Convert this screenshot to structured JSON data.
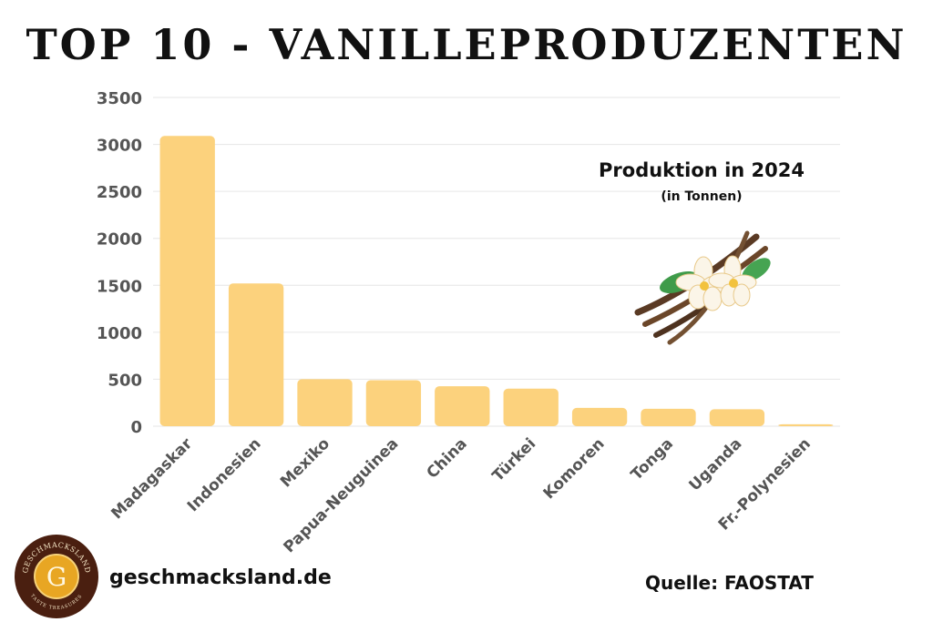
{
  "title": "TOP 10 - VANILLEPRODUZENTEN",
  "subtitle": "Produktion in 2024",
  "unit_note": "(in Tonnen)",
  "website": "geschmacksland.de",
  "source": "Quelle: FAOSTAT",
  "logo": {
    "text_top": "GESCHMACKSLAND",
    "text_bottom": "TASTE TREASURES",
    "letter": "G"
  },
  "colors": {
    "bar": "#fcd27d",
    "grid": "#e6e6e6",
    "tick_text": "#555555",
    "logo_ring": "#4a1f10",
    "logo_center": "#e8a623"
  },
  "illustration": "vanilla-pods-with-flowers",
  "chart_data": {
    "type": "bar",
    "categories": [
      "Madagaskar",
      "Indonesien",
      "Mexiko",
      "Papua-Neuguinea",
      "China",
      "Türkei",
      "Komoren",
      "Tonga",
      "Uganda",
      "Fr.-Polynesien"
    ],
    "values": [
      3090,
      1520,
      500,
      490,
      425,
      400,
      195,
      185,
      180,
      20
    ],
    "title": "TOP 10 - VANILLEPRODUZENTEN",
    "subtitle": "Produktion in 2024",
    "ylim": [
      0,
      3500
    ],
    "yticks": [
      0,
      500,
      1000,
      1500,
      2000,
      2500,
      3000,
      3500
    ],
    "grid": true,
    "legend": "none"
  }
}
